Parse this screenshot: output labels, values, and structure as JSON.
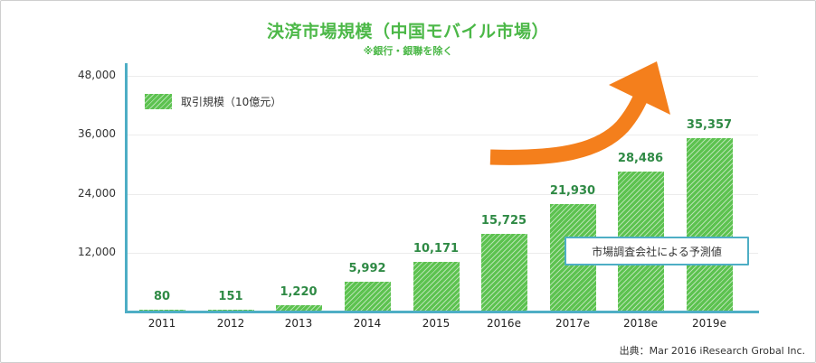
{
  "chart_data": {
    "type": "bar",
    "title": "決済市場規模（中国モバイル市場）",
    "subtitle": "※銀行・銀聯を除く",
    "categories": [
      "2011",
      "2012",
      "2013",
      "2014",
      "2015",
      "2016e",
      "2017e",
      "2018e",
      "2019e"
    ],
    "series": [
      {
        "name": "取引規模（10億元）",
        "values": [
          80,
          151,
          1220,
          5992,
          10171,
          15725,
          21930,
          28486,
          35357
        ]
      }
    ],
    "value_labels": [
      "80",
      "151",
      "1,220",
      "5,992",
      "10,171",
      "15,725",
      "21,930",
      "28,486",
      "35,357"
    ],
    "xlabel": "",
    "ylabel": "",
    "ylim": [
      0,
      48000
    ],
    "yticks": [
      "48,000",
      "36,000",
      "24,000",
      "12,000"
    ],
    "grid": true,
    "legend_position": "top-left",
    "annotations": [
      {
        "type": "callout",
        "text": "市場調査会社による予測値"
      },
      {
        "type": "arrow",
        "description": "orange upward curved growth arrow",
        "color": "#f47f1c"
      }
    ],
    "source": "出典：Mar 2016 iResearch Grobal Inc.",
    "colors": {
      "bar": "#5cc24f",
      "value_label": "#2f8a45",
      "title": "#4cb848",
      "axis": "#4eaec5",
      "arrow": "#f47f1c"
    }
  },
  "header": {
    "title": "決済市場規模（中国モバイル市場）",
    "subtitle": "※銀行・銀聯を除く"
  },
  "legend": {
    "label": "取引規模（10億元）"
  },
  "yaxis": {
    "ticks": [
      "48,000",
      "36,000",
      "24,000",
      "12,000"
    ]
  },
  "bars": [
    {
      "category": "2011",
      "label": "80"
    },
    {
      "category": "2012",
      "label": "151"
    },
    {
      "category": "2013",
      "label": "1,220"
    },
    {
      "category": "2014",
      "label": "5,992"
    },
    {
      "category": "2015",
      "label": "10,171"
    },
    {
      "category": "2016e",
      "label": "15,725"
    },
    {
      "category": "2017e",
      "label": "21,930"
    },
    {
      "category": "2018e",
      "label": "28,486"
    },
    {
      "category": "2019e",
      "label": "35,357"
    }
  ],
  "callout": {
    "text": "市場調査会社による予測値"
  },
  "footer": {
    "source": "出典：Mar 2016 iResearch Grobal Inc."
  }
}
